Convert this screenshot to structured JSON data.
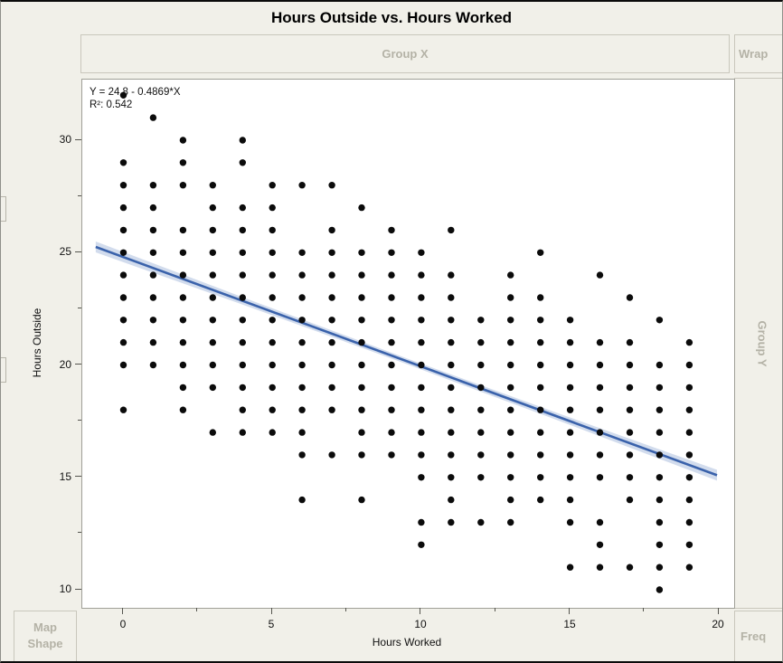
{
  "header": {
    "title": "Hours Outside vs. Hours Worked"
  },
  "zones": {
    "group_x": "Group X",
    "wrap": "Wrap",
    "group_y": "Group Y",
    "map_shape_line1": "Map",
    "map_shape_line2": "Shape",
    "freq": "Freq"
  },
  "chart_data": {
    "type": "scatter",
    "title": "Hours Outside vs. Hours Worked",
    "xlabel": "Hours Worked",
    "ylabel": "Hours Outside",
    "axes": {
      "x": {
        "label": "Hours Worked",
        "ticks": [
          0,
          5,
          10,
          15,
          20
        ],
        "minor_ticks": [
          2.5,
          7.5,
          12.5,
          17.5
        ],
        "range": [
          -1.35,
          20.5
        ]
      },
      "y": {
        "label": "Hours Outside",
        "ticks": [
          30,
          25,
          20,
          15,
          10
        ],
        "minor_ticks": [
          27.5,
          22.5,
          17.5,
          12.5
        ],
        "range": [
          9.2,
          32.7
        ]
      }
    },
    "grid": false,
    "points": [
      {
        "x": 0,
        "ys": [
          32,
          29,
          28,
          27,
          26,
          25,
          24,
          23,
          22,
          21,
          20,
          18
        ]
      },
      {
        "x": 1,
        "ys": [
          31,
          28,
          27,
          26,
          25,
          24,
          23,
          22,
          21,
          20
        ]
      },
      {
        "x": 2,
        "ys": [
          30,
          29,
          28,
          26,
          25,
          24,
          23,
          22,
          21,
          20,
          19,
          18
        ]
      },
      {
        "x": 3,
        "ys": [
          28,
          27,
          26,
          25,
          24,
          23,
          22,
          21,
          20,
          19,
          17
        ]
      },
      {
        "x": 4,
        "ys": [
          30,
          29,
          27,
          26,
          25,
          24,
          23,
          22,
          21,
          20,
          19,
          18,
          17
        ]
      },
      {
        "x": 5,
        "ys": [
          28,
          27,
          26,
          25,
          24,
          23,
          22,
          21,
          20,
          19,
          18,
          17
        ]
      },
      {
        "x": 6,
        "ys": [
          28,
          25,
          24,
          23,
          22,
          21,
          20,
          19,
          18,
          17,
          16,
          14
        ]
      },
      {
        "x": 7,
        "ys": [
          28,
          26,
          25,
          24,
          23,
          22,
          21,
          20,
          19,
          18,
          16
        ]
      },
      {
        "x": 8,
        "ys": [
          27,
          25,
          24,
          23,
          22,
          21,
          20,
          19,
          18,
          17,
          16,
          14
        ]
      },
      {
        "x": 9,
        "ys": [
          26,
          25,
          24,
          23,
          22,
          21,
          20,
          19,
          18,
          17,
          16
        ]
      },
      {
        "x": 10,
        "ys": [
          25,
          24,
          23,
          22,
          21,
          20,
          19,
          18,
          17,
          16,
          15,
          13,
          12
        ]
      },
      {
        "x": 11,
        "ys": [
          26,
          24,
          23,
          22,
          21,
          20,
          19,
          18,
          17,
          16,
          15,
          14,
          13
        ]
      },
      {
        "x": 12,
        "ys": [
          22,
          21,
          20,
          19,
          18,
          17,
          16,
          15,
          13
        ]
      },
      {
        "x": 13,
        "ys": [
          24,
          23,
          22,
          21,
          20,
          19,
          18,
          17,
          16,
          15,
          14,
          13
        ]
      },
      {
        "x": 14,
        "ys": [
          25,
          23,
          22,
          21,
          20,
          19,
          18,
          17,
          16,
          15,
          14
        ]
      },
      {
        "x": 15,
        "ys": [
          22,
          21,
          20,
          19,
          18,
          17,
          16,
          15,
          14,
          13,
          11
        ]
      },
      {
        "x": 16,
        "ys": [
          24,
          21,
          20,
          19,
          18,
          17,
          16,
          15,
          13,
          12,
          11
        ]
      },
      {
        "x": 17,
        "ys": [
          23,
          21,
          20,
          19,
          18,
          17,
          16,
          15,
          14,
          11
        ]
      },
      {
        "x": 18,
        "ys": [
          22,
          20,
          19,
          18,
          17,
          16,
          15,
          14,
          13,
          12,
          11,
          10
        ]
      },
      {
        "x": 19,
        "ys": [
          21,
          20,
          19,
          18,
          17,
          16,
          15,
          14,
          13,
          12,
          11
        ]
      }
    ],
    "regression": {
      "equation_label": "Y = 24.8 - 0.4869*X",
      "r2_label": "R²: 0.542",
      "intercept": 24.8,
      "slope": -0.4869,
      "x_start": -0.93,
      "x_end": 19.93,
      "band": [
        {
          "x": -0.93,
          "w": 6.0
        },
        {
          "x": 4.3,
          "w": 4.0
        },
        {
          "x": 9.5,
          "w": 3.2
        },
        {
          "x": 14.7,
          "w": 4.0
        },
        {
          "x": 19.93,
          "w": 6.0
        }
      ]
    },
    "colors": {
      "dot": "#0b0b0b",
      "line": "#3a62ab",
      "band": "#c7d3e8",
      "plot_bg": "#ffffff",
      "page_bg": "#f1f0e9",
      "zone_border": "#c9c7bc",
      "zone_text": "#b4b2a6"
    }
  }
}
